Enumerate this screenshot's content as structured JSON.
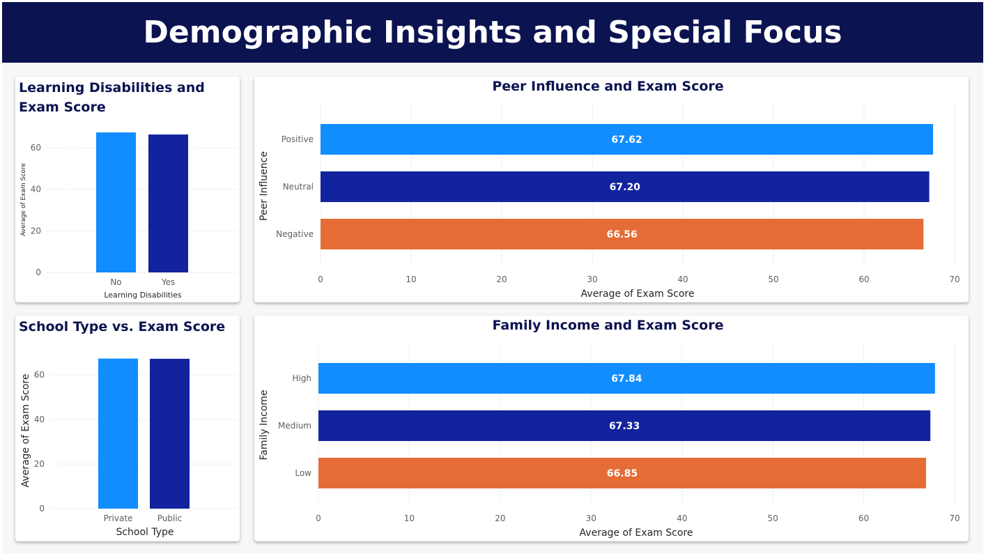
{
  "dashboard": {
    "title": "Demographic Insights and Special Focus"
  },
  "colors": {
    "banner": "#0b1350",
    "light_blue": "#118dff",
    "dark_blue": "#12239e",
    "orange": "#e66c37"
  },
  "chart_data": [
    {
      "id": "learning_disabilities",
      "type": "bar",
      "title": "Learning Disabilities and Exam Score",
      "xlabel": "Learning Disabilities",
      "ylabel": "Average of Exam Score",
      "categories": [
        "No",
        "Yes"
      ],
      "values": [
        67.3,
        66.3
      ],
      "colors": [
        "#118dff",
        "#12239e"
      ],
      "ylim": [
        0,
        70
      ],
      "yticks": [
        0,
        20,
        40,
        60
      ],
      "grid": true
    },
    {
      "id": "peer_influence",
      "type": "bar",
      "orientation": "horizontal",
      "title": "Peer Influence and Exam Score",
      "xlabel": "Average of Exam Score",
      "ylabel": "Peer Influence",
      "categories": [
        "Positive",
        "Neutral",
        "Negative"
      ],
      "values": [
        67.62,
        67.2,
        66.56
      ],
      "labels": [
        "67.62",
        "67.20",
        "66.56"
      ],
      "colors": [
        "#118dff",
        "#12239e",
        "#e66c37"
      ],
      "xlim": [
        0,
        70
      ],
      "xticks": [
        0,
        10,
        20,
        30,
        40,
        50,
        60,
        70
      ],
      "grid": true
    },
    {
      "id": "school_type",
      "type": "bar",
      "title": "School Type vs. Exam Score",
      "xlabel": "School Type",
      "ylabel": "Average of Exam Score",
      "categories": [
        "Private",
        "Public"
      ],
      "values": [
        67.3,
        67.2
      ],
      "colors": [
        "#118dff",
        "#12239e"
      ],
      "ylim": [
        0,
        70
      ],
      "yticks": [
        0,
        20,
        40,
        60
      ],
      "grid": true
    },
    {
      "id": "family_income",
      "type": "bar",
      "orientation": "horizontal",
      "title": "Family Income and Exam Score",
      "xlabel": "Average of Exam Score",
      "ylabel": "Family Income",
      "categories": [
        "High",
        "Medium",
        "Low"
      ],
      "values": [
        67.84,
        67.33,
        66.85
      ],
      "labels": [
        "67.84",
        "67.33",
        "66.85"
      ],
      "colors": [
        "#118dff",
        "#12239e",
        "#e66c37"
      ],
      "xlim": [
        0,
        70
      ],
      "xticks": [
        0,
        10,
        20,
        30,
        40,
        50,
        60,
        70
      ],
      "grid": true
    }
  ]
}
